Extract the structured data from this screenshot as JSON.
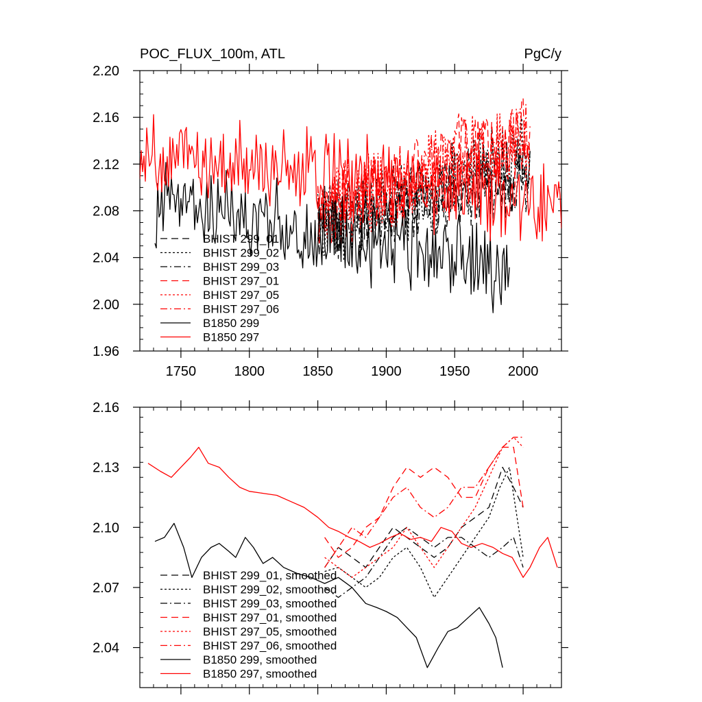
{
  "chart_data": [
    {
      "type": "line",
      "title": "POC_FLUX_100m, ATL",
      "units": "PgC/y",
      "xlim": [
        1720,
        2028
      ],
      "ylim": [
        1.96,
        2.2
      ],
      "xticks": [
        1750,
        1800,
        1850,
        1900,
        1950,
        2000
      ],
      "xtick_labels": [
        "1750",
        "1800",
        "1850",
        "1900",
        "1950",
        "2000"
      ],
      "yticks": [
        1.96,
        2.0,
        2.04,
        2.08,
        2.12,
        2.16,
        2.2
      ],
      "ytick_labels": [
        "1.96",
        "2.00",
        "2.04",
        "2.08",
        "2.12",
        "2.16",
        "2.20"
      ],
      "legend_position": "lower-left",
      "series": [
        {
          "name": "BHIST 299_01",
          "color": "#000000",
          "dash": "dash",
          "x_range": [
            1850,
            2005
          ],
          "mean": 2.075,
          "amp": 0.028,
          "start_level": 2.07,
          "end_level": 2.12,
          "seed": 11
        },
        {
          "name": "BHIST 299_02",
          "color": "#000000",
          "dash": "dot",
          "x_range": [
            1850,
            2005
          ],
          "mean": 2.072,
          "amp": 0.03,
          "start_level": 2.06,
          "end_level": 2.13,
          "seed": 23
        },
        {
          "name": "BHIST 299_03",
          "color": "#000000",
          "dash": "dashdot",
          "x_range": [
            1850,
            2005
          ],
          "mean": 2.078,
          "amp": 0.028,
          "start_level": 2.07,
          "end_level": 2.11,
          "seed": 37
        },
        {
          "name": "BHIST 297_01",
          "color": "#ff0000",
          "dash": "dash",
          "x_range": [
            1850,
            2005
          ],
          "mean": 2.095,
          "amp": 0.03,
          "start_level": 2.08,
          "end_level": 2.15,
          "seed": 41
        },
        {
          "name": "BHIST 297_05",
          "color": "#ff0000",
          "dash": "dot",
          "x_range": [
            1850,
            2005
          ],
          "mean": 2.092,
          "amp": 0.03,
          "start_level": 2.08,
          "end_level": 2.14,
          "seed": 53
        },
        {
          "name": "BHIST 297_06",
          "color": "#ff0000",
          "dash": "dashdot",
          "x_range": [
            1850,
            2005
          ],
          "mean": 2.094,
          "amp": 0.03,
          "start_level": 2.08,
          "end_level": 2.14,
          "seed": 67
        },
        {
          "name": "B1850 299",
          "color": "#000000",
          "dash": "solid",
          "x_range": [
            1731,
            1990
          ],
          "mean": 2.075,
          "amp": 0.03,
          "start_level": 2.09,
          "end_level": 2.03,
          "seed": 71
        },
        {
          "name": "B1850 297",
          "color": "#ff0000",
          "dash": "solid",
          "x_range": [
            1720,
            2028
          ],
          "mean": 2.11,
          "amp": 0.03,
          "start_level": 2.13,
          "end_level": 2.085,
          "seed": 83
        }
      ]
    },
    {
      "type": "line",
      "xlim": [
        1720,
        2028
      ],
      "ylim": [
        2.02,
        2.16
      ],
      "xticks": [
        1750,
        1800,
        1850,
        1900,
        1950,
        2000
      ],
      "xtick_labels": [
        "",
        "",
        "",
        "",
        "",
        ""
      ],
      "yticks": [
        2.04,
        2.07,
        2.1,
        2.13,
        2.16
      ],
      "ytick_labels": [
        "2.04",
        "2.07",
        "2.10",
        "2.13",
        "2.16"
      ],
      "legend_position": "lower-left",
      "series": [
        {
          "name": "BHIST 299_01, smoothed",
          "color": "#000000",
          "dash": "dash",
          "points": [
            [
              1855,
              2.08
            ],
            [
              1865,
              2.09
            ],
            [
              1875,
              2.085
            ],
            [
              1885,
              2.08
            ],
            [
              1895,
              2.09
            ],
            [
              1905,
              2.1
            ],
            [
              1915,
              2.095
            ],
            [
              1925,
              2.09
            ],
            [
              1935,
              2.085
            ],
            [
              1945,
              2.09
            ],
            [
              1955,
              2.1
            ],
            [
              1965,
              2.105
            ],
            [
              1975,
              2.11
            ],
            [
              1985,
              2.13
            ],
            [
              1993,
              2.12
            ],
            [
              2000,
              2.11
            ]
          ]
        },
        {
          "name": "BHIST 299_02, smoothed",
          "color": "#000000",
          "dash": "dot",
          "points": [
            [
              1855,
              2.078
            ],
            [
              1865,
              2.08
            ],
            [
              1875,
              2.075
            ],
            [
              1885,
              2.07
            ],
            [
              1895,
              2.075
            ],
            [
              1905,
              2.085
            ],
            [
              1915,
              2.09
            ],
            [
              1925,
              2.08
            ],
            [
              1935,
              2.065
            ],
            [
              1945,
              2.075
            ],
            [
              1955,
              2.085
            ],
            [
              1965,
              2.095
            ],
            [
              1975,
              2.105
            ],
            [
              1983,
              2.12
            ],
            [
              1990,
              2.13
            ],
            [
              2000,
              2.085
            ]
          ]
        },
        {
          "name": "BHIST 299_03, smoothed",
          "color": "#000000",
          "dash": "dashdot",
          "points": [
            [
              1855,
              2.07
            ],
            [
              1865,
              2.065
            ],
            [
              1875,
              2.07
            ],
            [
              1885,
              2.075
            ],
            [
              1895,
              2.085
            ],
            [
              1905,
              2.095
            ],
            [
              1915,
              2.1
            ],
            [
              1925,
              2.095
            ],
            [
              1935,
              2.09
            ],
            [
              1945,
              2.095
            ],
            [
              1955,
              2.095
            ],
            [
              1965,
              2.09
            ],
            [
              1975,
              2.085
            ],
            [
              1985,
              2.09
            ],
            [
              1993,
              2.095
            ],
            [
              2000,
              2.08
            ]
          ]
        },
        {
          "name": "BHIST 297_01, smoothed",
          "color": "#ff0000",
          "dash": "dash",
          "points": [
            [
              1855,
              2.095
            ],
            [
              1865,
              2.085
            ],
            [
              1875,
              2.09
            ],
            [
              1885,
              2.1
            ],
            [
              1895,
              2.105
            ],
            [
              1905,
              2.12
            ],
            [
              1915,
              2.13
            ],
            [
              1925,
              2.125
            ],
            [
              1935,
              2.13
            ],
            [
              1945,
              2.125
            ],
            [
              1955,
              2.115
            ],
            [
              1965,
              2.115
            ],
            [
              1975,
              2.13
            ],
            [
              1985,
              2.14
            ],
            [
              1993,
              2.14
            ],
            [
              2000,
              2.11
            ]
          ]
        },
        {
          "name": "BHIST 297_05, smoothed",
          "color": "#ff0000",
          "dash": "dot",
          "points": [
            [
              1855,
              2.085
            ],
            [
              1865,
              2.08
            ],
            [
              1875,
              2.075
            ],
            [
              1885,
              2.08
            ],
            [
              1895,
              2.085
            ],
            [
              1905,
              2.09
            ],
            [
              1915,
              2.1
            ],
            [
              1925,
              2.09
            ],
            [
              1935,
              2.08
            ],
            [
              1945,
              2.09
            ],
            [
              1955,
              2.1
            ],
            [
              1965,
              2.11
            ],
            [
              1975,
              2.125
            ],
            [
              1985,
              2.14
            ],
            [
              1993,
              2.145
            ],
            [
              2000,
              2.14
            ]
          ]
        },
        {
          "name": "BHIST 297_06, smoothed",
          "color": "#ff0000",
          "dash": "dashdot",
          "points": [
            [
              1855,
              2.08
            ],
            [
              1865,
              2.09
            ],
            [
              1875,
              2.1
            ],
            [
              1885,
              2.095
            ],
            [
              1895,
              2.105
            ],
            [
              1905,
              2.115
            ],
            [
              1915,
              2.12
            ],
            [
              1925,
              2.11
            ],
            [
              1935,
              2.105
            ],
            [
              1945,
              2.11
            ],
            [
              1955,
              2.12
            ],
            [
              1965,
              2.12
            ],
            [
              1975,
              2.13
            ],
            [
              1985,
              2.14
            ],
            [
              1993,
              2.145
            ],
            [
              2000,
              2.145
            ]
          ]
        },
        {
          "name": "B1850 299, smoothed",
          "color": "#000000",
          "dash": "solid",
          "points": [
            [
              1731,
              2.093
            ],
            [
              1738,
              2.095
            ],
            [
              1745,
              2.102
            ],
            [
              1752,
              2.09
            ],
            [
              1758,
              2.075
            ],
            [
              1765,
              2.085
            ],
            [
              1772,
              2.09
            ],
            [
              1778,
              2.092
            ],
            [
              1785,
              2.088
            ],
            [
              1790,
              2.085
            ],
            [
              1797,
              2.095
            ],
            [
              1803,
              2.09
            ],
            [
              1810,
              2.082
            ],
            [
              1817,
              2.085
            ],
            [
              1825,
              2.08
            ],
            [
              1835,
              2.077
            ],
            [
              1845,
              2.075
            ],
            [
              1855,
              2.072
            ],
            [
              1865,
              2.075
            ],
            [
              1875,
              2.07
            ],
            [
              1885,
              2.062
            ],
            [
              1893,
              2.06
            ],
            [
              1900,
              2.058
            ],
            [
              1908,
              2.055
            ],
            [
              1915,
              2.05
            ],
            [
              1922,
              2.045
            ],
            [
              1930,
              2.03
            ],
            [
              1938,
              2.04
            ],
            [
              1945,
              2.048
            ],
            [
              1952,
              2.05
            ],
            [
              1960,
              2.055
            ],
            [
              1968,
              2.06
            ],
            [
              1975,
              2.052
            ],
            [
              1980,
              2.045
            ],
            [
              1985,
              2.03
            ]
          ]
        },
        {
          "name": "B1850 297, smoothed",
          "color": "#ff0000",
          "dash": "solid",
          "points": [
            [
              1726,
              2.132
            ],
            [
              1735,
              2.128
            ],
            [
              1743,
              2.125
            ],
            [
              1750,
              2.13
            ],
            [
              1757,
              2.135
            ],
            [
              1763,
              2.14
            ],
            [
              1770,
              2.132
            ],
            [
              1778,
              2.13
            ],
            [
              1785,
              2.125
            ],
            [
              1793,
              2.12
            ],
            [
              1800,
              2.118
            ],
            [
              1810,
              2.117
            ],
            [
              1820,
              2.116
            ],
            [
              1830,
              2.113
            ],
            [
              1840,
              2.11
            ],
            [
              1850,
              2.105
            ],
            [
              1858,
              2.1
            ],
            [
              1865,
              2.098
            ],
            [
              1873,
              2.095
            ],
            [
              1880,
              2.093
            ],
            [
              1888,
              2.09
            ],
            [
              1895,
              2.092
            ],
            [
              1903,
              2.095
            ],
            [
              1910,
              2.097
            ],
            [
              1918,
              2.094
            ],
            [
              1925,
              2.095
            ],
            [
              1933,
              2.093
            ],
            [
              1940,
              2.1
            ],
            [
              1948,
              2.098
            ],
            [
              1955,
              2.092
            ],
            [
              1962,
              2.09
            ],
            [
              1970,
              2.092
            ],
            [
              1978,
              2.09
            ],
            [
              1985,
              2.087
            ],
            [
              1992,
              2.085
            ],
            [
              2000,
              2.075
            ],
            [
              2005,
              2.08
            ],
            [
              2012,
              2.09
            ],
            [
              2018,
              2.095
            ],
            [
              2025,
              2.08
            ]
          ]
        }
      ]
    }
  ]
}
